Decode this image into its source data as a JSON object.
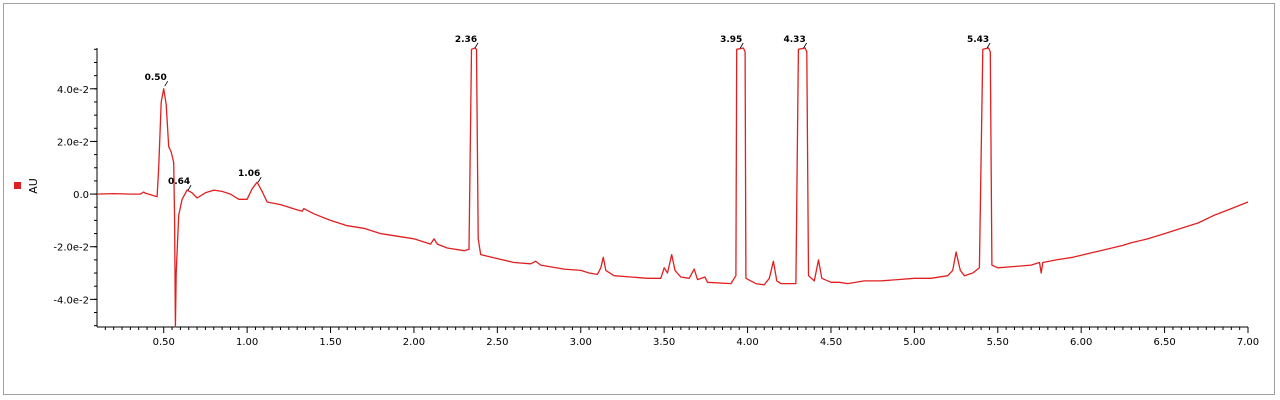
{
  "chart_data": {
    "type": "line",
    "title": "",
    "xlabel": "",
    "ylabel": "AU",
    "xlim": [
      0.1,
      7.0
    ],
    "ylim": [
      -0.0505,
      0.0555
    ],
    "series_color": "#e02020",
    "legend_color": "#e02020",
    "x_ticks": [
      "0.50",
      "1.00",
      "1.50",
      "2.00",
      "2.50",
      "3.00",
      "3.50",
      "4.00",
      "4.50",
      "5.00",
      "5.50",
      "6.00",
      "6.50",
      "7.00"
    ],
    "y_ticks": [
      {
        "value": 0.04,
        "label": "4.0e-2"
      },
      {
        "value": 0.02,
        "label": "2.0e-2"
      },
      {
        "value": 0.0,
        "label": "0.0"
      },
      {
        "value": -0.02,
        "label": "-2.0e-2"
      },
      {
        "value": -0.04,
        "label": "-4.0e-2"
      }
    ],
    "peak_labels": [
      {
        "label": "0.50",
        "x": 0.5,
        "y": 0.041
      },
      {
        "label": "0.64",
        "x": 0.64,
        "y": 0.0015
      },
      {
        "label": "1.06",
        "x": 1.06,
        "y": 0.0045
      },
      {
        "label": "2.36",
        "x": 2.36,
        "y": 0.0555
      },
      {
        "label": "3.95",
        "x": 3.95,
        "y": 0.0555
      },
      {
        "label": "4.33",
        "x": 4.33,
        "y": 0.0555
      },
      {
        "label": "5.43",
        "x": 5.43,
        "y": 0.0555
      }
    ],
    "points": [
      [
        0.1,
        0.0
      ],
      [
        0.2,
        0.0002
      ],
      [
        0.3,
        0.0
      ],
      [
        0.36,
        0.0
      ],
      [
        0.38,
        0.0008
      ],
      [
        0.39,
        0.0003
      ],
      [
        0.41,
        0.0
      ],
      [
        0.46,
        -0.001
      ],
      [
        0.47,
        0.01
      ],
      [
        0.485,
        0.035
      ],
      [
        0.5,
        0.04
      ],
      [
        0.515,
        0.034
      ],
      [
        0.53,
        0.018
      ],
      [
        0.545,
        0.016
      ],
      [
        0.56,
        0.012
      ],
      [
        0.565,
        -0.01
      ],
      [
        0.57,
        -0.0505
      ],
      [
        0.575,
        -0.03
      ],
      [
        0.59,
        -0.008
      ],
      [
        0.61,
        -0.002
      ],
      [
        0.64,
        0.0015
      ],
      [
        0.67,
        0.0005
      ],
      [
        0.7,
        -0.0015
      ],
      [
        0.75,
        0.0005
      ],
      [
        0.8,
        0.0015
      ],
      [
        0.85,
        0.001
      ],
      [
        0.9,
        0.0
      ],
      [
        0.95,
        -0.002
      ],
      [
        1.0,
        -0.002
      ],
      [
        1.03,
        0.002
      ],
      [
        1.06,
        0.0045
      ],
      [
        1.09,
        0.001
      ],
      [
        1.12,
        -0.003
      ],
      [
        1.2,
        -0.004
      ],
      [
        1.3,
        -0.006
      ],
      [
        1.33,
        -0.0065
      ],
      [
        1.34,
        -0.0055
      ],
      [
        1.4,
        -0.0075
      ],
      [
        1.5,
        -0.01
      ],
      [
        1.6,
        -0.012
      ],
      [
        1.7,
        -0.013
      ],
      [
        1.8,
        -0.015
      ],
      [
        1.9,
        -0.016
      ],
      [
        2.0,
        -0.017
      ],
      [
        2.1,
        -0.019
      ],
      [
        2.12,
        -0.017
      ],
      [
        2.14,
        -0.019
      ],
      [
        2.2,
        -0.0205
      ],
      [
        2.3,
        -0.0215
      ],
      [
        2.33,
        -0.021
      ],
      [
        2.345,
        0.055
      ],
      [
        2.365,
        0.0555
      ],
      [
        2.375,
        0.055
      ],
      [
        2.385,
        -0.017
      ],
      [
        2.4,
        -0.023
      ],
      [
        2.5,
        -0.0245
      ],
      [
        2.6,
        -0.026
      ],
      [
        2.7,
        -0.0265
      ],
      [
        2.73,
        -0.0255
      ],
      [
        2.76,
        -0.027
      ],
      [
        2.9,
        -0.0285
      ],
      [
        3.0,
        -0.029
      ],
      [
        3.05,
        -0.03
      ],
      [
        3.1,
        -0.0305
      ],
      [
        3.12,
        -0.028
      ],
      [
        3.135,
        -0.024
      ],
      [
        3.15,
        -0.029
      ],
      [
        3.2,
        -0.031
      ],
      [
        3.3,
        -0.0315
      ],
      [
        3.4,
        -0.032
      ],
      [
        3.48,
        -0.032
      ],
      [
        3.5,
        -0.028
      ],
      [
        3.52,
        -0.03
      ],
      [
        3.545,
        -0.023
      ],
      [
        3.565,
        -0.029
      ],
      [
        3.6,
        -0.0315
      ],
      [
        3.65,
        -0.032
      ],
      [
        3.68,
        -0.0285
      ],
      [
        3.7,
        -0.0325
      ],
      [
        3.745,
        -0.0315
      ],
      [
        3.76,
        -0.0335
      ],
      [
        3.9,
        -0.034
      ],
      [
        3.93,
        -0.031
      ],
      [
        3.935,
        0.055
      ],
      [
        3.975,
        0.0555
      ],
      [
        3.985,
        0.054
      ],
      [
        3.99,
        -0.032
      ],
      [
        4.05,
        -0.034
      ],
      [
        4.1,
        -0.0345
      ],
      [
        4.13,
        -0.032
      ],
      [
        4.155,
        -0.0255
      ],
      [
        4.175,
        -0.033
      ],
      [
        4.2,
        -0.034
      ],
      [
        4.29,
        -0.034
      ],
      [
        4.305,
        0.055
      ],
      [
        4.345,
        0.0555
      ],
      [
        4.355,
        0.054
      ],
      [
        4.365,
        -0.031
      ],
      [
        4.4,
        -0.033
      ],
      [
        4.425,
        -0.025
      ],
      [
        4.445,
        -0.032
      ],
      [
        4.5,
        -0.0335
      ],
      [
        4.55,
        -0.0335
      ],
      [
        4.6,
        -0.034
      ],
      [
        4.7,
        -0.033
      ],
      [
        4.8,
        -0.033
      ],
      [
        4.9,
        -0.0325
      ],
      [
        5.0,
        -0.032
      ],
      [
        5.1,
        -0.032
      ],
      [
        5.2,
        -0.031
      ],
      [
        5.23,
        -0.029
      ],
      [
        5.25,
        -0.022
      ],
      [
        5.275,
        -0.029
      ],
      [
        5.3,
        -0.031
      ],
      [
        5.35,
        -0.03
      ],
      [
        5.39,
        -0.028
      ],
      [
        5.41,
        0.055
      ],
      [
        5.445,
        0.0555
      ],
      [
        5.455,
        0.054
      ],
      [
        5.465,
        -0.027
      ],
      [
        5.5,
        -0.028
      ],
      [
        5.6,
        -0.0275
      ],
      [
        5.7,
        -0.027
      ],
      [
        5.75,
        -0.026
      ],
      [
        5.76,
        -0.03
      ],
      [
        5.77,
        -0.026
      ],
      [
        5.85,
        -0.025
      ],
      [
        5.95,
        -0.024
      ],
      [
        6.05,
        -0.0225
      ],
      [
        6.15,
        -0.021
      ],
      [
        6.25,
        -0.0195
      ],
      [
        6.3,
        -0.0185
      ],
      [
        6.4,
        -0.017
      ],
      [
        6.5,
        -0.015
      ],
      [
        6.6,
        -0.013
      ],
      [
        6.7,
        -0.011
      ],
      [
        6.8,
        -0.008
      ],
      [
        6.9,
        -0.0055
      ],
      [
        7.0,
        -0.003
      ]
    ]
  }
}
